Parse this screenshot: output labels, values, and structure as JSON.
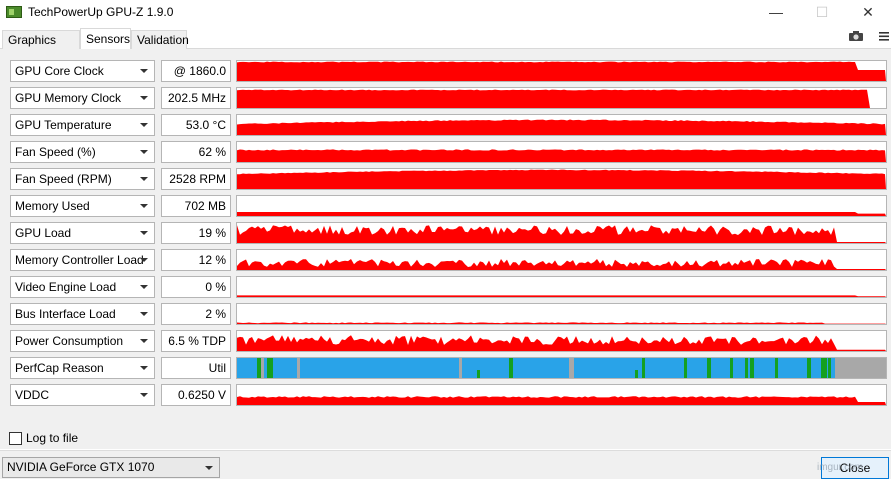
{
  "window": {
    "title": "TechPowerUp GPU-Z 1.9.0"
  },
  "tabs": [
    "Graphics Card",
    "Sensors",
    "Validation"
  ],
  "toolbar": {
    "camera_icon": "camera-icon",
    "menu_icon": "hamburger-menu-icon"
  },
  "sensors": [
    {
      "name": "GPU Core Clock",
      "value": "@ 1860.0",
      "graph": "red"
    },
    {
      "name": "GPU Memory Clock",
      "value": "202.5 MHz",
      "graph": "red"
    },
    {
      "name": "GPU Temperature",
      "value": "53.0 °C",
      "graph": "red"
    },
    {
      "name": "Fan Speed (%)",
      "value": "62 %",
      "graph": "red"
    },
    {
      "name": "Fan Speed (RPM)",
      "value": "2528 RPM",
      "graph": "red"
    },
    {
      "name": "Memory Used",
      "value": "702 MB",
      "graph": "red"
    },
    {
      "name": "GPU Load",
      "value": "19 %",
      "graph": "red"
    },
    {
      "name": "Memory Controller Load",
      "value": "12 %",
      "graph": "red"
    },
    {
      "name": "Video Engine Load",
      "value": "0 %",
      "graph": "red"
    },
    {
      "name": "Bus Interface Load",
      "value": "2 %",
      "graph": "red"
    },
    {
      "name": "Power Consumption",
      "value": "6.5 % TDP",
      "graph": "red"
    },
    {
      "name": "PerfCap Reason",
      "value": "Util",
      "graph": "perfcap"
    },
    {
      "name": "VDDC",
      "value": "0.6250 V",
      "graph": "red"
    }
  ],
  "colors": {
    "graph_red": "#ff0000",
    "perfcap_blue": "#29a3e8",
    "perfcap_green": "#14a020",
    "perfcap_gray": "#a8a8a8"
  },
  "footer": {
    "log_to_file_label": "Log to file",
    "log_to_file_checked": false,
    "gpu_select_value": "NVIDIA GeForce GTX 1070",
    "close_label": "Close"
  },
  "watermark": "imgur.com"
}
